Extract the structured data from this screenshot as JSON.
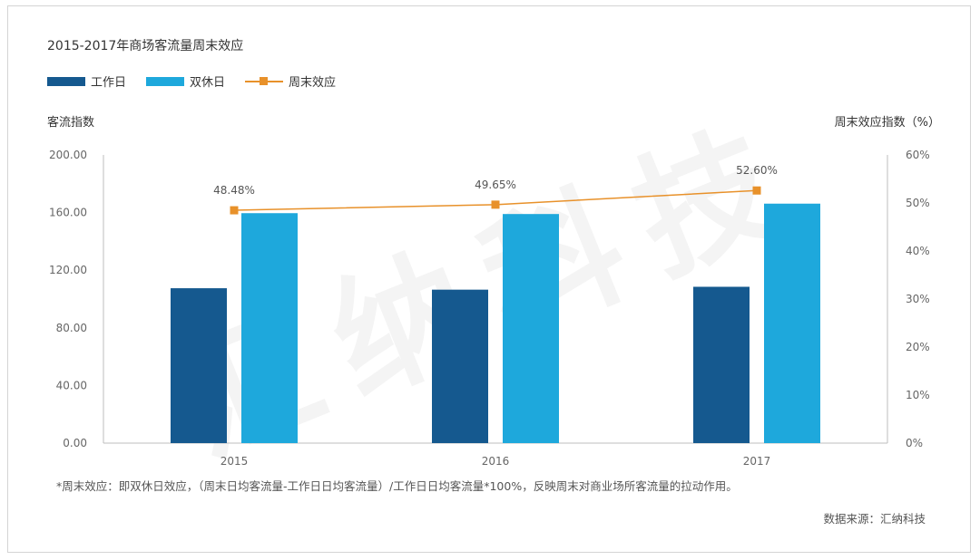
{
  "title": "2015-2017年商场客流量周末效应",
  "legend": [
    {
      "label": "工作日",
      "kind": "bar",
      "color": "#15598f"
    },
    {
      "label": "双休日",
      "kind": "bar",
      "color": "#1ea8dc"
    },
    {
      "label": "周末效应",
      "kind": "line",
      "color": "#e8912a"
    }
  ],
  "axis_titles": {
    "left": "客流指数",
    "right": "周末效应指数（%）"
  },
  "footnote": "*周末效应：即双休日效应，（周末日均客流量-工作日日均客流量）/工作日日均客流量*100%，反映周末对商业场所客流量的拉动作用。",
  "source": "数据来源：汇纳科技",
  "watermark": "汇纳科技",
  "chart_data": {
    "type": "bar",
    "categories": [
      "2015",
      "2016",
      "2017"
    ],
    "series": [
      {
        "name": "工作日",
        "type": "bar",
        "axis": "left",
        "color": "#15598f",
        "values": [
          107.5,
          106.5,
          108.5
        ]
      },
      {
        "name": "双休日",
        "type": "bar",
        "axis": "left",
        "color": "#1ea8dc",
        "values": [
          159.6,
          159.0,
          166.2
        ]
      },
      {
        "name": "周末效应",
        "type": "line",
        "axis": "right",
        "color": "#e8912a",
        "values": [
          48.48,
          49.65,
          52.6
        ],
        "labels": [
          "48.48%",
          "49.65%",
          "52.60%"
        ]
      }
    ],
    "ylim_left": [
      0,
      200
    ],
    "ylim_right": [
      0,
      60
    ],
    "yticks_left": [
      "0.00",
      "40.00",
      "80.00",
      "120.00",
      "160.00",
      "200.00"
    ],
    "yticks_right": [
      "0%",
      "10%",
      "20%",
      "30%",
      "40%",
      "50%",
      "60%"
    ],
    "ylabel_left": "客流指数",
    "ylabel_right": "周末效应指数（%）",
    "grid": false,
    "legend_position": "top-left"
  }
}
